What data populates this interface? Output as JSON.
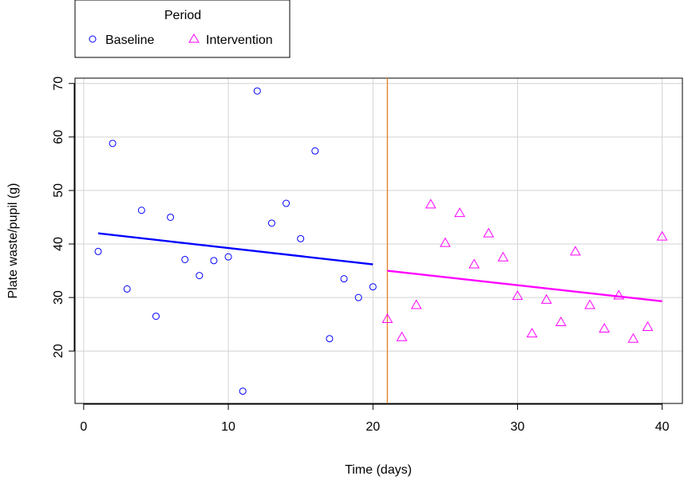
{
  "chart_data": {
    "type": "scatter",
    "xlabel": "Time (days)",
    "ylabel": "Plate waste/pupil (g)",
    "xlim": [
      -0.6,
      41.4
    ],
    "ylim": [
      10.2,
      71.0
    ],
    "xticks": [
      0,
      10,
      20,
      30,
      40
    ],
    "yticks": [
      20,
      30,
      40,
      50,
      60,
      70
    ],
    "grid": true,
    "legend": {
      "title": "Period",
      "placement": "top-left, outside plot",
      "entries": [
        "Baseline",
        "Intervention"
      ]
    },
    "colors": {
      "baseline": "#0000ff",
      "intervention": "#ff00ff",
      "intervention_line": "#e6862e",
      "grid": "#d3d3d3"
    },
    "series": [
      {
        "name": "Baseline",
        "marker": "circle",
        "x": [
          1,
          2,
          3,
          4,
          5,
          6,
          7,
          8,
          9,
          10,
          11,
          12,
          13,
          14,
          15,
          16,
          17,
          18,
          19,
          20
        ],
        "y": [
          38.6,
          58.8,
          31.6,
          46.3,
          26.5,
          45.0,
          37.1,
          34.1,
          36.9,
          37.6,
          12.5,
          68.6,
          43.9,
          47.6,
          41.0,
          57.4,
          22.3,
          33.5,
          30.0,
          32.0
        ],
        "fit": {
          "x": [
            1,
            20
          ],
          "y": [
            42.0,
            36.2
          ]
        }
      },
      {
        "name": "Intervention",
        "marker": "triangle",
        "x": [
          21,
          22,
          23,
          24,
          25,
          26,
          27,
          28,
          29,
          30,
          31,
          32,
          33,
          34,
          35,
          36,
          37,
          38,
          39,
          40
        ],
        "y": [
          26.0,
          22.6,
          28.6,
          47.4,
          40.2,
          45.8,
          36.2,
          42.0,
          37.5,
          30.3,
          23.3,
          29.6,
          25.4,
          38.6,
          28.6,
          24.2,
          30.4,
          22.3,
          24.5,
          41.4
        ],
        "fit": {
          "x": [
            21,
            40
          ],
          "y": [
            35.0,
            29.3
          ]
        }
      }
    ],
    "annotations": [
      {
        "type": "vline",
        "x": 21
      }
    ]
  }
}
